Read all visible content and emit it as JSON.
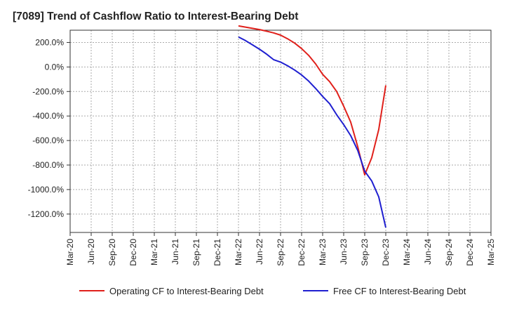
{
  "chart_data": {
    "type": "line",
    "title": "[7089]  Trend of Cashflow Ratio to Interest-Bearing Debt",
    "xlabel": "",
    "ylabel": "",
    "x_tick_labels": [
      "Mar-20",
      "Jun-20",
      "Sep-20",
      "Dec-20",
      "Mar-21",
      "Jun-21",
      "Sep-21",
      "Dec-21",
      "Mar-22",
      "Jun-22",
      "Sep-22",
      "Dec-22",
      "Mar-23",
      "Jun-23",
      "Sep-23",
      "Dec-23",
      "Mar-24",
      "Jun-24",
      "Sep-24",
      "Dec-24",
      "Mar-25"
    ],
    "y_ticks": [
      200,
      0,
      -200,
      -400,
      -600,
      -800,
      -1000,
      -1200
    ],
    "y_tick_labels": [
      "200.0%",
      "0.0%",
      "-200.0%",
      "-400.0%",
      "-600.0%",
      "-800.0%",
      "-1000.0%",
      "-1200.0%"
    ],
    "ylim": [
      -1350,
      300
    ],
    "xlim": [
      "Mar-20",
      "Mar-25"
    ],
    "grid": true,
    "legend_position": "bottom",
    "series": [
      {
        "name": "Operating CF to Interest-Bearing Debt",
        "color": "#e0201b",
        "points": [
          [
            "Mar-22",
            335
          ],
          [
            "Apr-22",
            325
          ],
          [
            "May-22",
            315
          ],
          [
            "Jun-22",
            305
          ],
          [
            "Jul-22",
            292
          ],
          [
            "Aug-22",
            278
          ],
          [
            "Sep-22",
            260
          ],
          [
            "Oct-22",
            230
          ],
          [
            "Nov-22",
            195
          ],
          [
            "Dec-22",
            150
          ],
          [
            "Jan-23",
            95
          ],
          [
            "Feb-23",
            25
          ],
          [
            "Mar-23",
            -60
          ],
          [
            "Apr-23",
            -120
          ],
          [
            "May-23",
            -200
          ],
          [
            "Jun-23",
            -320
          ],
          [
            "Jul-23",
            -450
          ],
          [
            "Aug-23",
            -650
          ],
          [
            "Sep-23",
            -880
          ],
          [
            "Oct-23",
            -740
          ],
          [
            "Nov-23",
            -510
          ],
          [
            "Dec-23",
            -150
          ]
        ]
      },
      {
        "name": "Free CF to Interest-Bearing Debt",
        "color": "#1f1fd0",
        "points": [
          [
            "Mar-22",
            245
          ],
          [
            "Apr-22",
            215
          ],
          [
            "May-22",
            180
          ],
          [
            "Jun-22",
            145
          ],
          [
            "Jul-22",
            105
          ],
          [
            "Aug-22",
            60
          ],
          [
            "Sep-22",
            40
          ],
          [
            "Oct-22",
            10
          ],
          [
            "Nov-22",
            -25
          ],
          [
            "Dec-22",
            -65
          ],
          [
            "Jan-23",
            -115
          ],
          [
            "Feb-23",
            -175
          ],
          [
            "Mar-23",
            -240
          ],
          [
            "Apr-23",
            -300
          ],
          [
            "May-23",
            -390
          ],
          [
            "Jun-23",
            -470
          ],
          [
            "Jul-23",
            -560
          ],
          [
            "Aug-23",
            -680
          ],
          [
            "Sep-23",
            -850
          ],
          [
            "Oct-23",
            -930
          ],
          [
            "Nov-23",
            -1060
          ],
          [
            "Dec-23",
            -1310
          ]
        ]
      }
    ]
  }
}
